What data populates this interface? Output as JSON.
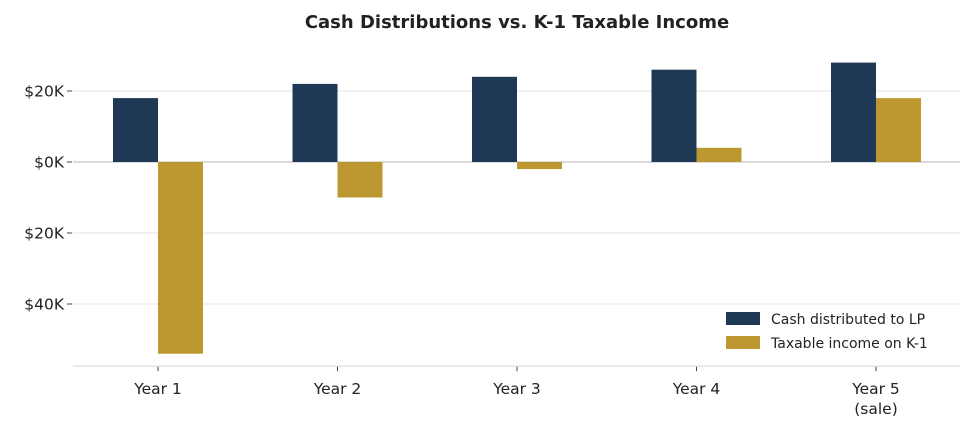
{
  "chart_data": {
    "type": "bar",
    "title": "Cash Distributions vs. K-1 Taxable Income",
    "xlabel": "",
    "ylabel": "",
    "categories": [
      "Year 1",
      "Year 2",
      "Year 3",
      "Year 4",
      "Year 5\n(sale)"
    ],
    "series": [
      {
        "name": "Cash distributed to LP",
        "color": "#1f3856",
        "values": [
          18000,
          22000,
          24000,
          26000,
          28000
        ]
      },
      {
        "name": "Taxable income on K-1",
        "color": "#bd9830",
        "values": [
          -54000,
          -10000,
          -2000,
          4000,
          18000
        ]
      }
    ],
    "yticks": [
      20000,
      0,
      -20000,
      -40000
    ],
    "ytick_labels": [
      "$20K",
      "$0K",
      "$20K",
      "$40K"
    ],
    "ylim": [
      -57500,
      30000
    ],
    "grid": true,
    "legend_position": "bottom-right"
  }
}
